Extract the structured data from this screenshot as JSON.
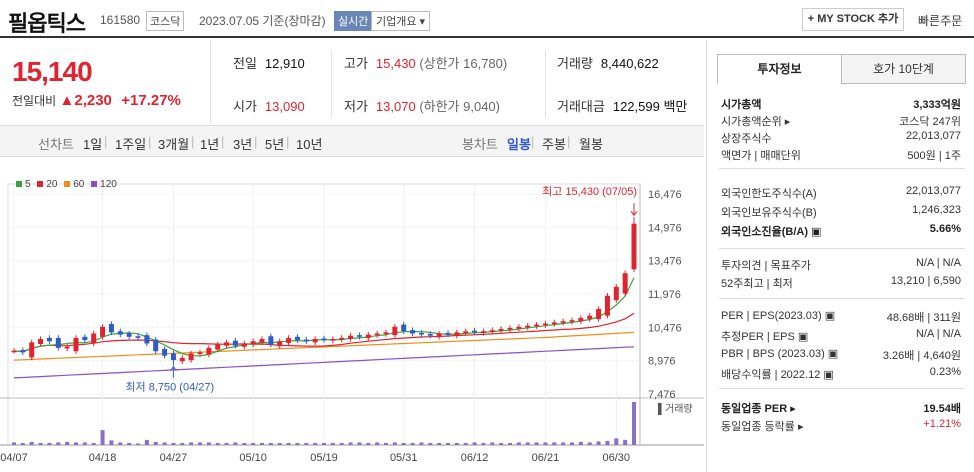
{
  "header": {
    "name": "필옵틱스",
    "code": "161580",
    "market": "코스닥",
    "date": "2023.07.05 기준(장마감)",
    "live_badge": "실시간",
    "info_button": "기업개요 ▾",
    "mystock_button": "+ MY STOCK 추가",
    "quick_order": "빠른주문"
  },
  "price": {
    "current": "15,140",
    "prefix": "전일대비",
    "change": "▲2,230",
    "rate": "+17.27%"
  },
  "stats": {
    "prev_label": "전일",
    "prev": "12,910",
    "high_label": "고가",
    "high": "15,430",
    "high_sub": "(상한가 16,780)",
    "volume_label": "거래량",
    "volume": "8,440,622",
    "open_label": "시가",
    "open": "13,090",
    "low_label": "저가",
    "low": "13,070",
    "low_sub": "(하한가 9,040)",
    "amount_label": "거래대금",
    "amount": "122,599 백만"
  },
  "period": {
    "label": "선차트",
    "items": [
      "1일",
      "1주일",
      "3개월",
      "1년",
      "3년",
      "5년",
      "10년"
    ],
    "candle_label": "봉차트",
    "candles": [
      "일봉",
      "주봉",
      "월봉"
    ],
    "active_candle": "일봉"
  },
  "chart_data": {
    "type": "candlestick",
    "legend": [
      {
        "name": "5",
        "color": "#3aa53a"
      },
      {
        "name": "20",
        "color": "#e0232f"
      },
      {
        "name": "60",
        "color": "#f08c1e"
      },
      {
        "name": "120",
        "color": "#8a4fc3"
      }
    ],
    "y_ticks": [
      "16,476",
      "14,976",
      "13,476",
      "11,976",
      "10,476",
      "8,976",
      "7,476"
    ],
    "ylim": [
      7476,
      16476
    ],
    "x_labels": [
      "04/07",
      "04/18",
      "04/27",
      "05/10",
      "05/19",
      "05/31",
      "06/12",
      "06/21",
      "06/30"
    ],
    "max_annotation": "최고 15,430 (07/05)",
    "min_annotation": "최저 8,750 (04/27)",
    "volume_label": "▌거래량",
    "closes": [
      9420,
      9350,
      9800,
      9950,
      9850,
      9550,
      9600,
      10000,
      9900,
      10200,
      10500,
      10250,
      10150,
      10050,
      10000,
      9750,
      9400,
      9200,
      9000,
      9100,
      9300,
      9350,
      9550,
      9700,
      9800,
      9650,
      9750,
      9850,
      9950,
      9700,
      9850,
      10000,
      9900,
      9850,
      9950,
      9900,
      9950,
      10000,
      10100,
      10050,
      10150,
      10200,
      10250,
      10500,
      10300,
      10200,
      10150,
      10100,
      10200,
      10150,
      10250,
      10300,
      10250,
      10300,
      10350,
      10400,
      10450,
      10500,
      10550,
      10600,
      10650,
      10700,
      10750,
      10800,
      10900,
      11000,
      11300,
      11900,
      12300,
      12910,
      15140
    ],
    "volumes": [
      0.5,
      0.4,
      0.6,
      0.4,
      0.4,
      0.5,
      0.6,
      0.5,
      0.5,
      0.4,
      2.9,
      0.9,
      0.5,
      0.4,
      0.3,
      1.0,
      0.6,
      0.5,
      0.4,
      0.4,
      0.5,
      0.5,
      0.5,
      0.4,
      0.4,
      0.5,
      0.4,
      0.4,
      0.4,
      0.4,
      0.4,
      0.4,
      0.4,
      0.4,
      0.4,
      0.4,
      0.4,
      0.4,
      0.5,
      0.5,
      0.4,
      0.5,
      0.4,
      0.5,
      0.4,
      0.4,
      0.5,
      0.4,
      0.4,
      0.4,
      0.4,
      0.4,
      0.5,
      0.4,
      0.5,
      0.4,
      0.4,
      0.5,
      0.5,
      0.5,
      0.5,
      0.5,
      0.5,
      0.5,
      0.6,
      0.5,
      0.7,
      0.8,
      1.3,
      1.0,
      8.4
    ]
  },
  "right_panel": {
    "tabs": [
      "투자정보",
      "호가 10단계"
    ],
    "rows1": [
      {
        "k": "시가총액",
        "v": "3,333억원",
        "bold": true
      },
      {
        "k": "시가총액순위 ▸",
        "v": "코스닥 247위"
      },
      {
        "k": "상장주식수",
        "v": "22,013,077"
      },
      {
        "k": "액면가 | 매매단위",
        "v": "500원 | 1주"
      }
    ],
    "rows2": [
      {
        "k": "외국인한도주식수(A)",
        "v": "22,013,077"
      },
      {
        "k": "외국인보유주식수(B)",
        "v": "1,246,323"
      },
      {
        "k": "외국인소진율(B/A) ▣",
        "v": "5.66%",
        "bold": true
      }
    ],
    "rows3": [
      {
        "k": "투자의견 | 목표주가",
        "v": "N/A | N/A"
      },
      {
        "k": "52주최고 | 최저",
        "v": "13,210 | 6,590"
      }
    ],
    "rows4": [
      {
        "k": "PER | EPS(2023.03) ▣",
        "v": "48.68배 | 311원"
      },
      {
        "k": "추정PER | EPS ▣",
        "v": "N/A | N/A"
      },
      {
        "k": "PBR | BPS (2023.03) ▣",
        "v": "3.26배 | 4,640원"
      },
      {
        "k": "배당수익률 | 2022.12 ▣",
        "v": "0.23%"
      }
    ],
    "rows5": [
      {
        "k": "동일업종 PER ▸",
        "v": "19.54배",
        "bold": true
      },
      {
        "k": "동일업종 등락률 ▸",
        "v": "+1.21%",
        "up": true
      }
    ]
  }
}
